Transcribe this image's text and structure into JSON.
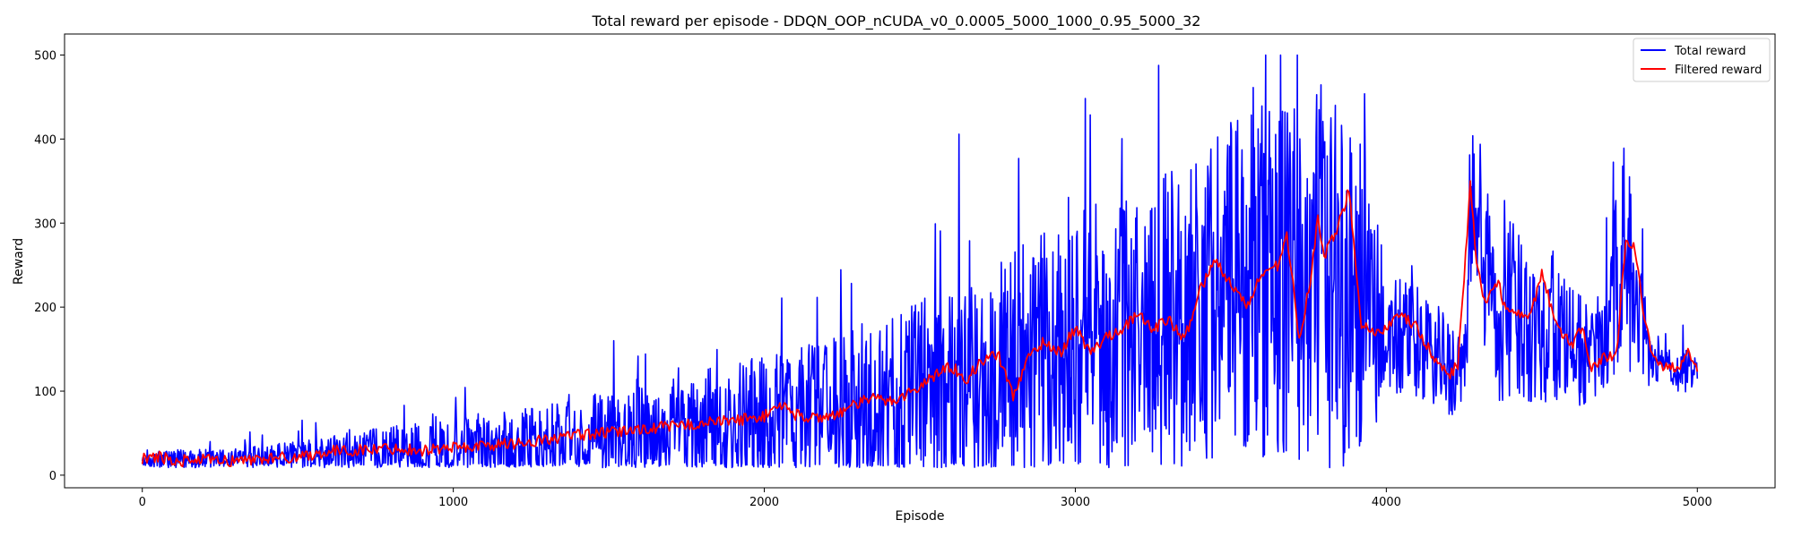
{
  "chart_data": {
    "type": "line",
    "title": "Total reward per episode - DDQN_OOP_nCUDA_v0_0.0005_5000_1000_0.95_5000_32",
    "xlabel": "Episode",
    "ylabel": "Reward",
    "xlim": [
      -250,
      5250
    ],
    "ylim": [
      -15,
      525
    ],
    "xticks": [
      0,
      1000,
      2000,
      3000,
      4000,
      5000
    ],
    "yticks": [
      0,
      100,
      200,
      300,
      400,
      500
    ],
    "legend_position": "top-right",
    "grid": false,
    "series": [
      {
        "name": "Total reward",
        "color": "#0000ff",
        "x": [
          0,
          250,
          500,
          750,
          1000,
          1250,
          1500,
          1750,
          2000,
          2250,
          2500,
          2750,
          3000,
          3250,
          3500,
          3750,
          3900,
          4000,
          4100,
          4200,
          4250,
          4280,
          4350,
          4400,
          4500,
          4550,
          4600,
          4700,
          4760,
          4800,
          4850,
          4900,
          4950,
          5000
        ],
        "mean": [
          18,
          19,
          22,
          26,
          30,
          35,
          45,
          55,
          65,
          78,
          95,
          120,
          150,
          180,
          225,
          240,
          220,
          165,
          155,
          130,
          115,
          330,
          185,
          195,
          175,
          170,
          150,
          140,
          280,
          190,
          135,
          130,
          125,
          125
        ],
        "spread": [
          12,
          12,
          18,
          30,
          40,
          45,
          55,
          65,
          80,
          95,
          115,
          140,
          160,
          180,
          200,
          230,
          230,
          80,
          70,
          60,
          55,
          120,
          110,
          110,
          90,
          90,
          70,
          60,
          140,
          120,
          25,
          20,
          30,
          15
        ]
      },
      {
        "name": "Filtered reward",
        "color": "#ff0000",
        "x": [
          0,
          50,
          100,
          200,
          300,
          400,
          500,
          600,
          700,
          800,
          900,
          1000,
          1100,
          1200,
          1300,
          1400,
          1500,
          1600,
          1700,
          1800,
          1900,
          2000,
          2050,
          2100,
          2150,
          2200,
          2250,
          2300,
          2350,
          2400,
          2450,
          2500,
          2550,
          2600,
          2650,
          2700,
          2750,
          2800,
          2850,
          2900,
          2950,
          3000,
          3050,
          3100,
          3150,
          3200,
          3250,
          3300,
          3350,
          3400,
          3450,
          3500,
          3550,
          3600,
          3650,
          3680,
          3720,
          3760,
          3780,
          3800,
          3840,
          3880,
          3920,
          3960,
          4000,
          4050,
          4100,
          4150,
          4200,
          4230,
          4270,
          4290,
          4320,
          4360,
          4380,
          4420,
          4460,
          4500,
          4530,
          4560,
          4600,
          4630,
          4660,
          4700,
          4740,
          4770,
          4800,
          4830,
          4870,
          4900,
          4940,
          4970,
          5000
        ],
        "y": [
          20,
          22,
          17,
          18,
          17,
          20,
          22,
          28,
          30,
          32,
          30,
          33,
          35,
          38,
          42,
          48,
          50,
          55,
          58,
          62,
          65,
          70,
          85,
          72,
          68,
          70,
          75,
          85,
          92,
          88,
          95,
          105,
          120,
          130,
          115,
          135,
          145,
          95,
          140,
          160,
          145,
          175,
          145,
          165,
          175,
          190,
          175,
          185,
          160,
          220,
          255,
          230,
          200,
          240,
          250,
          290,
          160,
          240,
          310,
          260,
          290,
          340,
          180,
          170,
          175,
          190,
          175,
          140,
          120,
          130,
          345,
          250,
          200,
          235,
          200,
          190,
          185,
          240,
          200,
          170,
          155,
          175,
          130,
          140,
          145,
          280,
          270,
          180,
          130,
          130,
          125,
          150,
          125
        ]
      }
    ]
  }
}
